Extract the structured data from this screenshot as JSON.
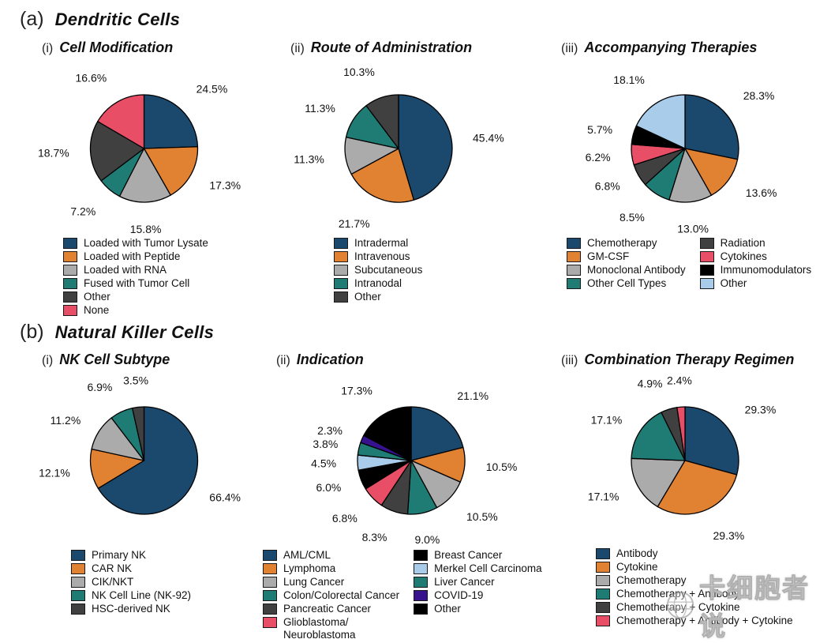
{
  "page": {
    "section_a": {
      "index": "(a)",
      "title": "Dendritic Cells"
    },
    "section_b": {
      "index": "(b)",
      "title": "Natural Killer Cells"
    },
    "watermark": {
      "text": "卡细胞者说",
      "logo": "globe-icon"
    }
  },
  "palette": {
    "navy": "#1B486D",
    "orange": "#E08232",
    "gray": "#ABABAB",
    "teal": "#1E7C74",
    "darkgray": "#404040",
    "pink": "#E84F66",
    "black": "#000000",
    "lightblue": "#A9CCEA",
    "purple": "#36128F"
  },
  "chart_data": [
    {
      "type": "pie",
      "section": "Dendritic Cells",
      "index": "(i)",
      "title": "Cell Modification",
      "legend_position": "bottom",
      "legend_columns": 1,
      "slices": [
        {
          "label": "Loaded with Tumor Lysate",
          "value": 24.5,
          "color": "#1B486D"
        },
        {
          "label": "Loaded with Peptide",
          "value": 17.3,
          "color": "#E08232"
        },
        {
          "label": "Loaded with RNA",
          "value": 15.8,
          "color": "#ABABAB"
        },
        {
          "label": "Fused with Tumor Cell",
          "value": 7.2,
          "color": "#1E7C74"
        },
        {
          "label": "Other",
          "value": 18.7,
          "color": "#404040"
        },
        {
          "label": "None",
          "value": 16.6,
          "color": "#E84F66"
        }
      ]
    },
    {
      "type": "pie",
      "section": "Dendritic Cells",
      "index": "(ii)",
      "title": "Route of Administration",
      "legend_position": "bottom",
      "legend_columns": 1,
      "slices": [
        {
          "label": "Intradermal",
          "value": 45.4,
          "color": "#1B486D"
        },
        {
          "label": "Intravenous",
          "value": 21.7,
          "color": "#E08232"
        },
        {
          "label": "Subcutaneous",
          "value": 11.3,
          "color": "#ABABAB"
        },
        {
          "label": "Intranodal",
          "value": 11.3,
          "color": "#1E7C74"
        },
        {
          "label": "Other",
          "value": 10.3,
          "color": "#404040"
        }
      ]
    },
    {
      "type": "pie",
      "section": "Dendritic Cells",
      "index": "(iii)",
      "title": "Accompanying Therapies",
      "legend_position": "bottom",
      "legend_columns": 2,
      "slices": [
        {
          "label": "Chemotherapy",
          "value": 28.3,
          "color": "#1B486D"
        },
        {
          "label": "GM-CSF",
          "value": 13.6,
          "color": "#E08232"
        },
        {
          "label": "Monoclonal Antibody",
          "value": 13.0,
          "color": "#ABABAB"
        },
        {
          "label": "Other Cell Types",
          "value": 8.5,
          "color": "#1E7C74"
        },
        {
          "label": "Radiation",
          "value": 6.8,
          "color": "#404040"
        },
        {
          "label": "Cytokines",
          "value": 6.2,
          "color": "#E84F66"
        },
        {
          "label": "Immunomodulators",
          "value": 5.7,
          "color": "#000000"
        },
        {
          "label": "Other",
          "value": 18.1,
          "color": "#A9CCEA"
        }
      ]
    },
    {
      "type": "pie",
      "section": "Natural Killer Cells",
      "index": "(i)",
      "title": "NK Cell Subtype",
      "legend_position": "bottom",
      "legend_columns": 1,
      "slices": [
        {
          "label": "Primary NK",
          "value": 66.4,
          "color": "#1B486D"
        },
        {
          "label": "CAR NK",
          "value": 12.1,
          "color": "#E08232"
        },
        {
          "label": "CIK/NKT",
          "value": 11.2,
          "color": "#ABABAB"
        },
        {
          "label": "NK Cell Line (NK-92)",
          "value": 6.9,
          "color": "#1E7C74"
        },
        {
          "label": "HSC-derived NK",
          "value": 3.5,
          "color": "#404040"
        }
      ]
    },
    {
      "type": "pie",
      "section": "Natural Killer Cells",
      "index": "(ii)",
      "title": "Indication",
      "legend_position": "bottom",
      "legend_columns": 2,
      "slices": [
        {
          "label": "AML/CML",
          "value": 21.1,
          "color": "#1B486D"
        },
        {
          "label": "Lymphoma",
          "value": 10.5,
          "color": "#E08232"
        },
        {
          "label": "Lung Cancer",
          "value": 10.5,
          "color": "#ABABAB"
        },
        {
          "label": "Colon/Colorectal Cancer",
          "value": 9.0,
          "color": "#1E7C74"
        },
        {
          "label": "Pancreatic Cancer",
          "value": 8.3,
          "color": "#404040"
        },
        {
          "label": "Glioblastoma/\nNeuroblastoma",
          "value": 6.8,
          "color": "#E84F66"
        },
        {
          "label": "Breast Cancer",
          "value": 6.0,
          "color": "#000000"
        },
        {
          "label": "Merkel Cell Carcinoma",
          "value": 4.5,
          "color": "#A9CCEA"
        },
        {
          "label": "Liver Cancer",
          "value": 3.8,
          "color": "#1E7C74"
        },
        {
          "label": "COVID-19",
          "value": 2.3,
          "color": "#36128F"
        },
        {
          "label": "Other",
          "value": 17.3,
          "color": "#000000"
        }
      ]
    },
    {
      "type": "pie",
      "section": "Natural Killer Cells",
      "index": "(iii)",
      "title": "Combination Therapy Regimen",
      "legend_position": "bottom",
      "legend_columns": 1,
      "slices": [
        {
          "label": "Antibody",
          "value": 29.3,
          "color": "#1B486D"
        },
        {
          "label": "Cytokine",
          "value": 29.3,
          "color": "#E08232"
        },
        {
          "label": "Chemotherapy",
          "value": 17.1,
          "color": "#ABABAB"
        },
        {
          "label": "Chemotherapy + Antibody",
          "value": 17.1,
          "color": "#1E7C74"
        },
        {
          "label": "Chemotherapy + Cytokine",
          "value": 4.9,
          "color": "#404040"
        },
        {
          "label": "Chemotherapy + Antibody + Cytokine",
          "value": 2.4,
          "color": "#E84F66"
        }
      ]
    }
  ]
}
